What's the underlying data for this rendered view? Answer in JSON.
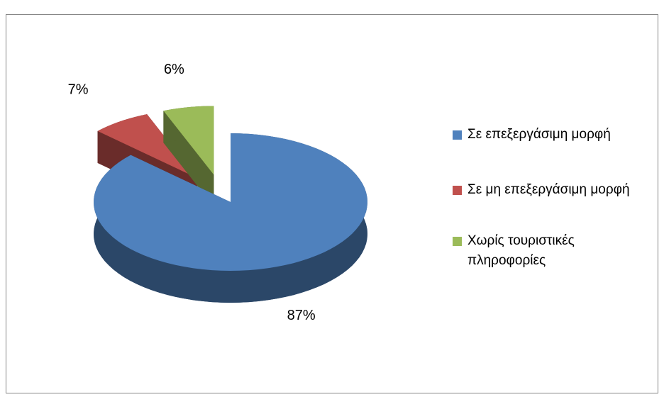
{
  "chart_data": {
    "type": "pie3d",
    "categories": [
      "Σε επεξεργάσιμη μορφή",
      "Σε μη επεξεργάσιμη μορφή",
      "Χωρίς τουριστικές πληροφορίες"
    ],
    "values": [
      87,
      7,
      6
    ],
    "value_labels": [
      "87%",
      "7%",
      "6%"
    ],
    "colors": [
      "#4f81bd",
      "#c0504d",
      "#9bbb59"
    ],
    "legend": "right"
  }
}
